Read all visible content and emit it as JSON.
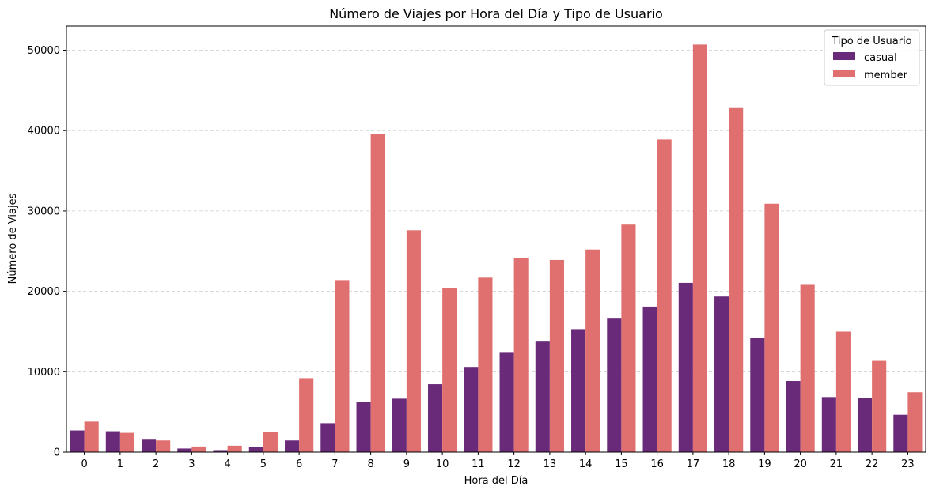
{
  "chart_data": {
    "type": "bar",
    "title": "Número de Viajes por Hora del Día y Tipo de Usuario",
    "xlabel": "Hora del Día",
    "ylabel": "Número de Viajes",
    "categories": [
      "0",
      "1",
      "2",
      "3",
      "4",
      "5",
      "6",
      "7",
      "8",
      "9",
      "10",
      "11",
      "12",
      "13",
      "14",
      "15",
      "16",
      "17",
      "18",
      "19",
      "20",
      "21",
      "22",
      "23"
    ],
    "ylim": [
      0,
      53000
    ],
    "yticks": [
      "0",
      "10000",
      "20000",
      "30000",
      "40000",
      "50000"
    ],
    "grid": "y-dashed",
    "legend": {
      "title": "Tipo de Usuario",
      "position": "top-right"
    },
    "series": [
      {
        "name": "casual",
        "color": "#6a2a7a",
        "values": [
          2700,
          2600,
          1550,
          450,
          250,
          650,
          1450,
          3600,
          6250,
          6650,
          8450,
          10600,
          12450,
          13750,
          15300,
          16700,
          18100,
          21050,
          19350,
          14200,
          8850,
          6850,
          6750,
          4650
        ]
      },
      {
        "name": "member",
        "color": "#e0706f",
        "values": [
          3800,
          2400,
          1450,
          700,
          800,
          2500,
          9200,
          21400,
          39600,
          27600,
          20400,
          21700,
          24100,
          23900,
          25200,
          28300,
          38900,
          50700,
          42800,
          30900,
          20900,
          15000,
          11350,
          7450
        ]
      }
    ]
  }
}
